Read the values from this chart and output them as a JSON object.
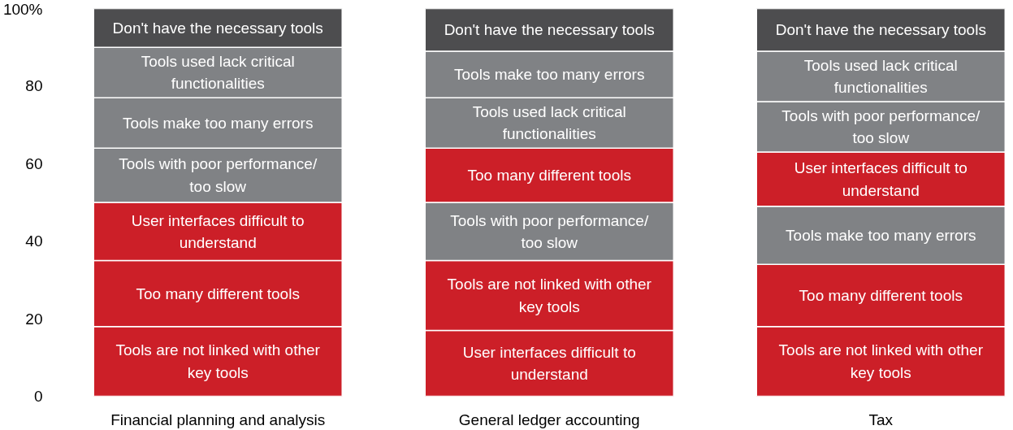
{
  "chart_data": {
    "type": "bar",
    "stacked": true,
    "categories": [
      "Financial planning and analysis",
      "General ledger accounting",
      "Tax"
    ],
    "series": [
      {
        "values": [
          18,
          17,
          18
        ],
        "colors": [
          "#cc1f28",
          "#cc1f28",
          "#cc1f28"
        ],
        "value_labels": [
          "Tools are not linked with other key tools",
          "User interfaces difficult to understand",
          "Tools are not linked with other key tools"
        ]
      },
      {
        "values": [
          17,
          18,
          16
        ],
        "colors": [
          "#cc1f28",
          "#cc1f28",
          "#cc1f28"
        ],
        "value_labels": [
          "Too many different tools",
          "Tools are not linked with other key tools",
          "Too many different tools"
        ]
      },
      {
        "values": [
          15,
          15,
          15
        ],
        "colors": [
          "#cc1f28",
          "#808285",
          "#808285"
        ],
        "value_labels": [
          "User interfaces difficult to understand",
          "Tools with poor performance/ too slow",
          "Tools make too many errors"
        ]
      },
      {
        "values": [
          14,
          14,
          14
        ],
        "colors": [
          "#808285",
          "#cc1f28",
          "#cc1f28"
        ],
        "value_labels": [
          "Tools with poor performance/ too slow",
          "Too many different tools",
          "User interfaces difficult to understand"
        ]
      },
      {
        "values": [
          13,
          13,
          13
        ],
        "colors": [
          "#808285",
          "#808285",
          "#808285"
        ],
        "value_labels": [
          "Tools make too many errors",
          "Tools used lack critical functionalities",
          "Tools with poor performance/ too slow"
        ]
      },
      {
        "values": [
          13,
          12,
          13
        ],
        "colors": [
          "#808285",
          "#808285",
          "#808285"
        ],
        "value_labels": [
          "Tools used lack critical functionalities",
          "Tools make too many errors",
          "Tools used lack critical functionalities"
        ]
      },
      {
        "values": [
          10,
          11,
          11
        ],
        "colors": [
          "#4d4d4f",
          "#4d4d4f",
          "#4d4d4f"
        ],
        "value_labels": [
          "Don't have the necessary tools",
          "Don't have the necessary tools",
          "Don't have the necessary tools"
        ]
      }
    ],
    "ylim": [
      0,
      100
    ],
    "yticks": [
      0,
      20,
      40,
      60,
      80,
      {
        "value": 100,
        "label": "100%"
      }
    ],
    "grid": false
  }
}
